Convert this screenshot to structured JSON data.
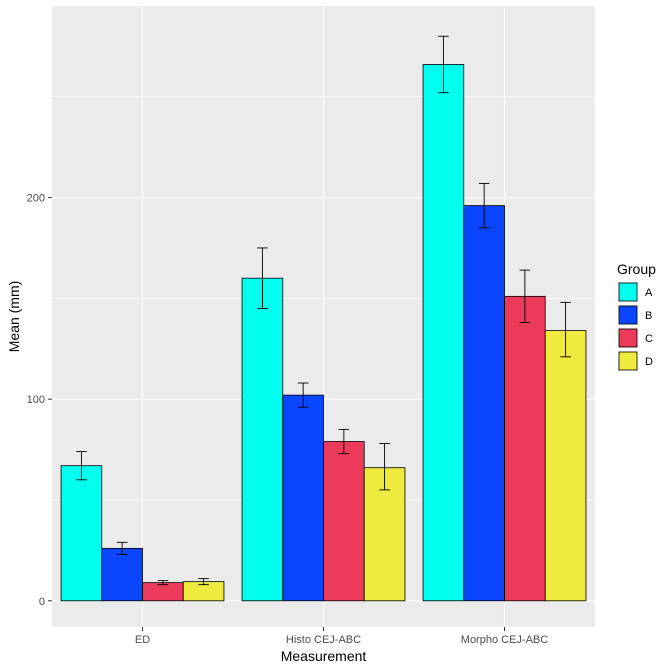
{
  "chart_data": {
    "type": "bar",
    "title": "",
    "xlabel": "Measurement",
    "ylabel": "Mean (mm)",
    "categories": [
      "ED",
      "Histo CEJ-ABC",
      "Morpho CEJ-ABC"
    ],
    "ylim": [
      -13,
      295
    ],
    "yticks": [
      0,
      100,
      200
    ],
    "ytick_labels": [
      "0",
      "100",
      "200"
    ],
    "legend_title": "Group",
    "legend_position": "right",
    "grid": true,
    "series": [
      {
        "name": "A",
        "color": "#00FFEE",
        "values": [
          67,
          160,
          266
        ],
        "err_low": [
          60,
          145,
          252
        ],
        "err_high": [
          74,
          175,
          280
        ]
      },
      {
        "name": "B",
        "color": "#0A46FF",
        "values": [
          26,
          102,
          196
        ],
        "err_low": [
          23,
          96,
          185
        ],
        "err_high": [
          29,
          108,
          207
        ]
      },
      {
        "name": "C",
        "color": "#EC3A5B",
        "values": [
          9,
          79,
          151
        ],
        "err_low": [
          8,
          73,
          138
        ],
        "err_high": [
          10,
          85,
          164
        ]
      },
      {
        "name": "D",
        "color": "#EEEA3E",
        "values": [
          9.5,
          66,
          134
        ],
        "err_low": [
          8,
          55,
          121
        ],
        "err_high": [
          11,
          78,
          148
        ]
      }
    ]
  }
}
